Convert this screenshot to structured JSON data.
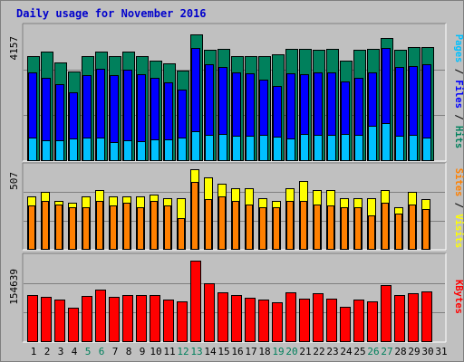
{
  "title": "Daily usage for November 2016",
  "chart_data": [
    {
      "type": "bar",
      "panel": "hits-files-pages",
      "max_label": "4157",
      "ylim": [
        0,
        4157
      ],
      "right_labels": [
        "Pages",
        "Files",
        "Hits"
      ],
      "colors": {
        "Hits": "#00805c",
        "Files": "#0000ff",
        "Pages": "#00c0ff"
      },
      "categories": [
        "1",
        "2",
        "3",
        "4",
        "5",
        "6",
        "7",
        "8",
        "9",
        "10",
        "11",
        "12",
        "13",
        "14",
        "15",
        "16",
        "17",
        "18",
        "19",
        "20",
        "21",
        "22",
        "23",
        "24",
        "25",
        "26",
        "27",
        "28",
        "29",
        "30"
      ],
      "series": [
        {
          "name": "Hits",
          "values": [
            3340,
            3480,
            3150,
            2850,
            3340,
            3480,
            3340,
            3480,
            3340,
            3200,
            3130,
            2900,
            4030,
            3560,
            3580,
            3340,
            3340,
            3340,
            3420,
            3580,
            3580,
            3560,
            3580,
            3200,
            3560,
            3580,
            3940,
            3560,
            3640,
            3640
          ]
        },
        {
          "name": "Files",
          "values": [
            2830,
            2650,
            2460,
            2200,
            2740,
            2940,
            2740,
            2920,
            2760,
            2650,
            2520,
            2270,
            3600,
            3090,
            3000,
            2830,
            2790,
            2600,
            2400,
            2790,
            2780,
            2840,
            2830,
            2540,
            2670,
            2820,
            3600,
            3010,
            3030,
            3080
          ]
        },
        {
          "name": "Pages",
          "values": [
            760,
            660,
            650,
            720,
            760,
            750,
            620,
            670,
            630,
            700,
            690,
            740,
            940,
            840,
            880,
            800,
            800,
            830,
            780,
            720,
            860,
            830,
            830,
            860,
            830,
            1120,
            1210,
            800,
            830,
            740
          ]
        }
      ]
    },
    {
      "type": "bar",
      "panel": "visits-sites",
      "max_label": "507",
      "ylim": [
        0,
        507
      ],
      "right_labels": [
        "Sites",
        "Visits"
      ],
      "colors": {
        "Visits": "#ffff00",
        "Sites": "#ff8000"
      },
      "categories": [
        "1",
        "2",
        "3",
        "4",
        "5",
        "6",
        "7",
        "8",
        "9",
        "10",
        "11",
        "12",
        "13",
        "14",
        "15",
        "16",
        "17",
        "18",
        "19",
        "20",
        "21",
        "22",
        "23",
        "24",
        "25",
        "26",
        "27",
        "28",
        "29",
        "30"
      ],
      "series": [
        {
          "name": "Visits",
          "values": [
            340,
            370,
            310,
            300,
            340,
            380,
            340,
            340,
            340,
            350,
            330,
            330,
            510,
            460,
            420,
            390,
            390,
            330,
            310,
            390,
            440,
            380,
            380,
            330,
            330,
            330,
            380,
            270,
            370,
            320
          ]
        },
        {
          "name": "Sites",
          "values": [
            280,
            310,
            290,
            270,
            270,
            310,
            280,
            300,
            270,
            310,
            280,
            200,
            430,
            320,
            340,
            310,
            290,
            270,
            270,
            310,
            310,
            290,
            280,
            270,
            270,
            220,
            300,
            230,
            290,
            260
          ]
        }
      ]
    },
    {
      "type": "bar",
      "panel": "kbytes",
      "max_label": "154639",
      "ylim": [
        0,
        154639
      ],
      "right_labels": [
        "KBytes"
      ],
      "colors": {
        "KBytes": "#ff0000"
      },
      "categories": [
        "1",
        "2",
        "3",
        "4",
        "5",
        "6",
        "7",
        "8",
        "9",
        "10",
        "11",
        "12",
        "13",
        "14",
        "15",
        "16",
        "17",
        "18",
        "19",
        "20",
        "21",
        "22",
        "23",
        "24",
        "25",
        "26",
        "27",
        "28",
        "29",
        "30"
      ],
      "series": [
        {
          "name": "KBytes",
          "values": [
            90000,
            86000,
            80000,
            65000,
            88000,
            100000,
            86000,
            90000,
            90000,
            90000,
            80000,
            78000,
            154639,
            112000,
            94000,
            90000,
            84000,
            80000,
            75000,
            95000,
            83000,
            92000,
            82000,
            67000,
            80000,
            78000,
            109000,
            90000,
            92000,
            96000
          ]
        }
      ]
    }
  ],
  "x_axis": {
    "labels": [
      "1",
      "2",
      "3",
      "4",
      "5",
      "6",
      "7",
      "8",
      "9",
      "10",
      "11",
      "12",
      "13",
      "14",
      "15",
      "16",
      "17",
      "18",
      "19",
      "20",
      "21",
      "22",
      "23",
      "24",
      "25",
      "26",
      "27",
      "28",
      "29",
      "30",
      "31"
    ],
    "weekend_days": [
      "5",
      "6",
      "12",
      "13",
      "19",
      "20",
      "26",
      "27"
    ],
    "weekday_color": "#000000",
    "weekend_color": "#00805c"
  }
}
